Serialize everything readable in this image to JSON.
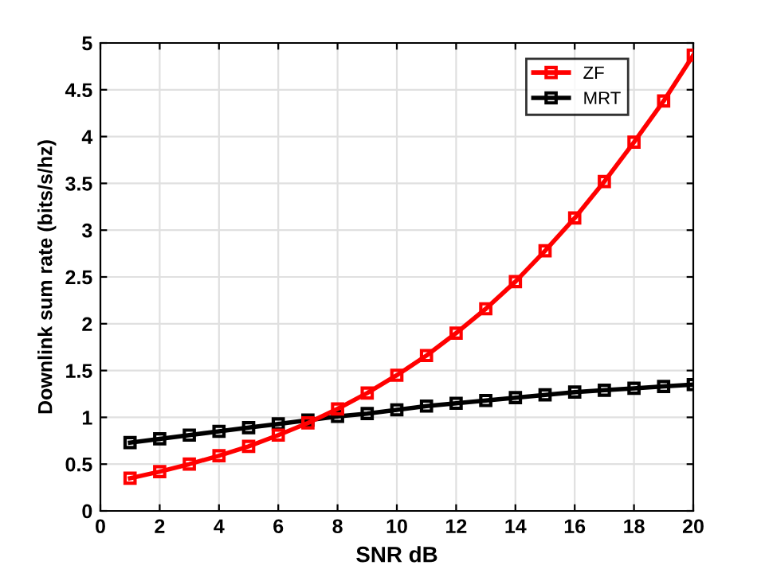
{
  "chart_data": {
    "type": "line",
    "xlabel": "SNR dB",
    "ylabel": "Downlink sum rate (bits/s/hz)",
    "x": [
      1,
      2,
      3,
      4,
      5,
      6,
      7,
      8,
      9,
      10,
      11,
      12,
      13,
      14,
      15,
      16,
      17,
      18,
      19,
      20
    ],
    "series": [
      {
        "name": "ZF",
        "color": "#ff0000",
        "values": [
          0.35,
          0.42,
          0.5,
          0.59,
          0.69,
          0.81,
          0.94,
          1.09,
          1.26,
          1.45,
          1.66,
          1.9,
          2.16,
          2.45,
          2.78,
          3.13,
          3.52,
          3.94,
          4.38,
          4.87
        ]
      },
      {
        "name": "MRT",
        "color": "#000000",
        "values": [
          0.73,
          0.77,
          0.81,
          0.85,
          0.89,
          0.93,
          0.97,
          1.01,
          1.04,
          1.08,
          1.12,
          1.15,
          1.18,
          1.21,
          1.24,
          1.27,
          1.29,
          1.31,
          1.33,
          1.35
        ]
      }
    ],
    "xlim": [
      0,
      20
    ],
    "xticks": [
      0,
      2,
      4,
      6,
      8,
      10,
      12,
      14,
      16,
      18,
      20
    ],
    "ylim": [
      0,
      5
    ],
    "yticks": [
      0,
      0.5,
      1,
      1.5,
      2,
      2.5,
      3,
      3.5,
      4,
      4.5,
      5
    ],
    "grid": true,
    "legend": "top right",
    "marker": "square",
    "line_style": "solid"
  }
}
